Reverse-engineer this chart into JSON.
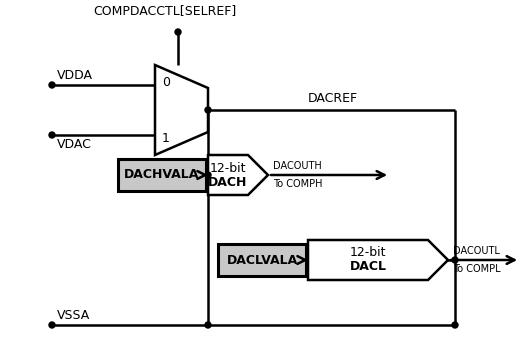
{
  "bg_color": "#ffffff",
  "line_color": "#000000",
  "mux_label_0": "0",
  "mux_label_1": "1",
  "mux_ctrl_label": "COMPDACCTL[SELREF]",
  "vdda_label": "VDDA",
  "vdac_label": "VDAC",
  "vssa_label": "VSSA",
  "dacref_label": "DACREF",
  "dachvala_label": "DACHVALA",
  "dacouth_label": "DACOUTH",
  "to_comph_label": "To COMPH",
  "daclvala_label": "DACLVALA",
  "dacoutl_label": "DACOUTL",
  "to_compl_label": "To COMPL",
  "dach_top_label": "12-bit",
  "dach_bot_label": "DACH",
  "dacl_top_label": "12-bit",
  "dacl_bot_label": "DACL",
  "gray_fill": "#c8c8c8",
  "white_fill": "#ffffff",
  "fs_label": 9,
  "fs_small": 7.5,
  "fs_signal": 7
}
